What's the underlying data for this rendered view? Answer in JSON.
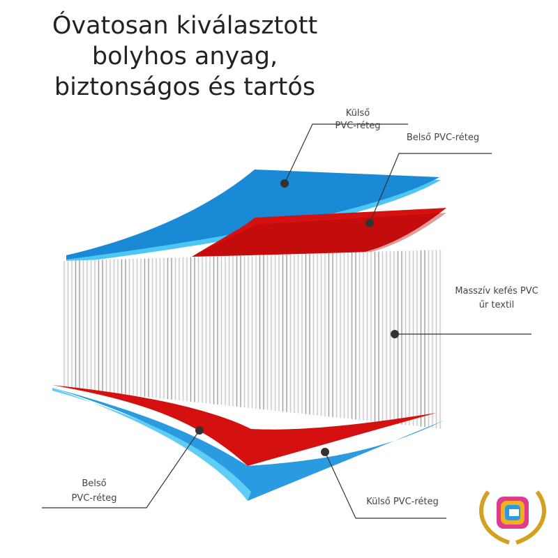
{
  "title": [
    "Óvatosan kiválasztott",
    "bolyhos anyag,",
    "biztonságos és tartós"
  ],
  "labels": [
    {
      "lines": [
        "Külső",
        "PVC-réteg"
      ]
    },
    {
      "lines": [
        "Belső PVC-réteg"
      ]
    },
    {
      "lines": [
        "Masszív kefés PVC",
        "űr textil"
      ]
    },
    {
      "lines": [
        "Belső",
        "PVC-réteg"
      ]
    },
    {
      "lines": [
        "Külső PVC-réteg"
      ]
    }
  ]
}
